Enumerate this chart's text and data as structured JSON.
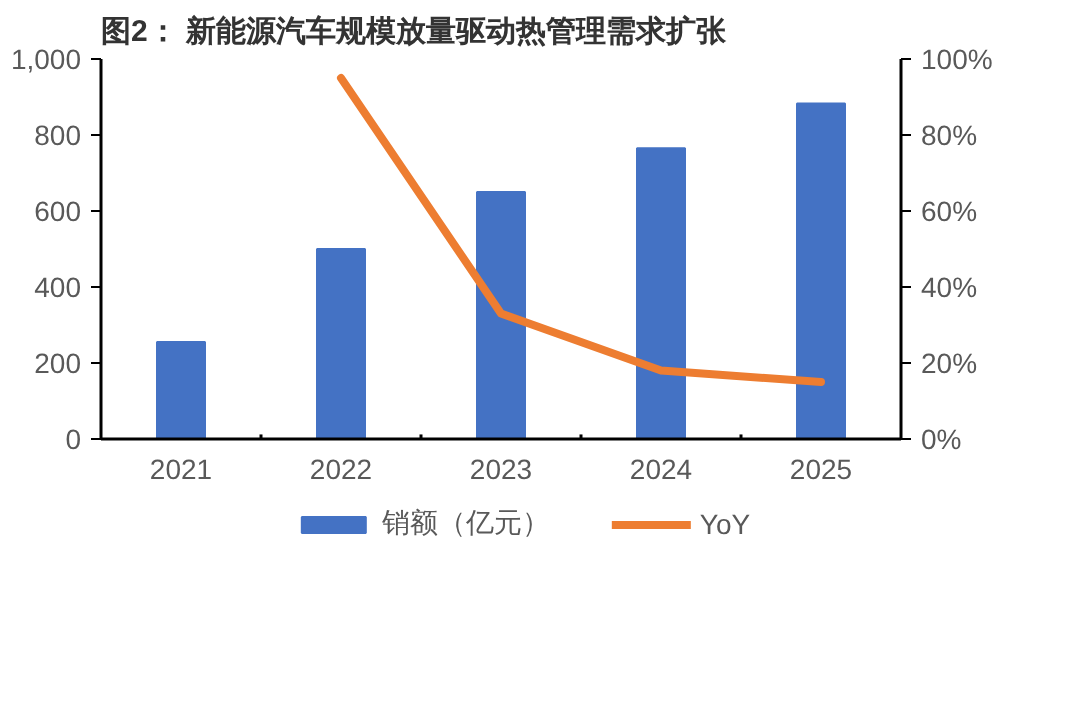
{
  "chart_data": {
    "type": "bar",
    "title": "图2：  新能源汽车规模放量驱动热管理需求扩张",
    "categories": [
      "2021",
      "2022",
      "2023",
      "2024",
      "2025"
    ],
    "series": [
      {
        "name": "销额（亿元）",
        "color": "#4472c4",
        "values": [
          255,
          500,
          650,
          765,
          883
        ]
      },
      {
        "name": "YoY",
        "color": "#ed7d31",
        "type": "line",
        "axis": "y2",
        "values": [
          null,
          95,
          33,
          18,
          15
        ]
      }
    ],
    "ylim": [
      0,
      1000
    ],
    "yticks": [
      0,
      200,
      400,
      600,
      800,
      {
        "value": 1000,
        "label": "1,000"
      }
    ],
    "y2lim": [
      0,
      100
    ],
    "y2ticks": [
      {
        "value": 0,
        "label": "0%"
      },
      {
        "value": 20,
        "label": "20%"
      },
      {
        "value": 40,
        "label": "40%"
      },
      {
        "value": 60,
        "label": "60%"
      },
      {
        "value": 80,
        "label": "80%"
      },
      {
        "value": 100,
        "label": "100%"
      }
    ],
    "grid": false,
    "legend": "bottom",
    "line_style": "solid",
    "marker": "none"
  }
}
